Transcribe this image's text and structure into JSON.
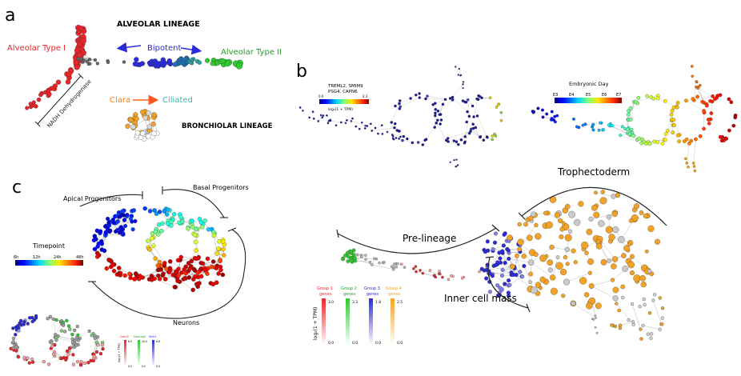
{
  "panels": {
    "a": {
      "letter": "a",
      "alveolar_lineage": "ALVEOLAR LINEAGE",
      "alveolar_type1": "Alveolar Type I",
      "bipotent": "Bipotent",
      "alveolar_type2": "Alveolar Type II",
      "nadh_label": "NADH Dehydrogenase",
      "clara": "Clara",
      "ciliated": "Ciliated",
      "bronchiolar_lineage": "BRONCHIOLAR LINEAGE"
    },
    "b": {
      "letter": "b",
      "gene_scale": {
        "genes_line1": "TREML2, SMIM9",
        "genes_line2": "PSG4, CAPN6",
        "min": "0.0",
        "max": "2.3",
        "unit": "log₂(1 + TPM)"
      },
      "day_scale": {
        "title": "Embryonic Day",
        "ticks": [
          "E3",
          "E4",
          "E5",
          "E6",
          "E7"
        ]
      },
      "trophectoderm": "Trophectoderm",
      "pre_lineage": "Pre-lineage",
      "inner_cell_mass": "Inner cell mass",
      "group_legend": {
        "unit": "log₂(1 + TPM)",
        "groups": [
          {
            "line1": "Group 1",
            "line2": "genes",
            "max": "3.0",
            "min": "0.0",
            "color": "#e8262a"
          },
          {
            "line1": "Group 2",
            "line2": "genes",
            "max": "3.3",
            "min": "0.0",
            "color": "#2fc92f"
          },
          {
            "line1": "Group 3",
            "line2": "genes",
            "max": "1.8",
            "min": "0.0",
            "color": "#2b2bd8"
          },
          {
            "line1": "Group 4",
            "line2": "genes",
            "max": "2.5",
            "min": "0.0",
            "color": "#f2a325"
          }
        ]
      }
    },
    "c": {
      "letter": "c",
      "apical": "Apical Progenitors",
      "basal": "Basal Progenitors",
      "neurons": "Neurons",
      "timepoint": {
        "title": "Timepoint",
        "ticks": [
          "6h",
          "12h",
          "24h",
          "48h"
        ]
      },
      "mini_legend": {
        "unit": "log₂(1 + TPM)",
        "genes": [
          {
            "name": "Gdnf2",
            "max": "8.0",
            "min": "0.0",
            "color": "#e8262a"
          },
          {
            "name": "Neurog2",
            "max": "10.0",
            "min": "0.0",
            "color": "#2fc92f"
          },
          {
            "name": "Wdr1",
            "max": "6.6",
            "min": "0.0",
            "color": "#2b2bd8"
          }
        ]
      }
    }
  },
  "colors": {
    "red": "#e8262a",
    "blue": "#2b2bd8",
    "green": "#2fc92f",
    "orange": "#f2a325",
    "teal": "#30b8b0",
    "edge": "#555555"
  }
}
